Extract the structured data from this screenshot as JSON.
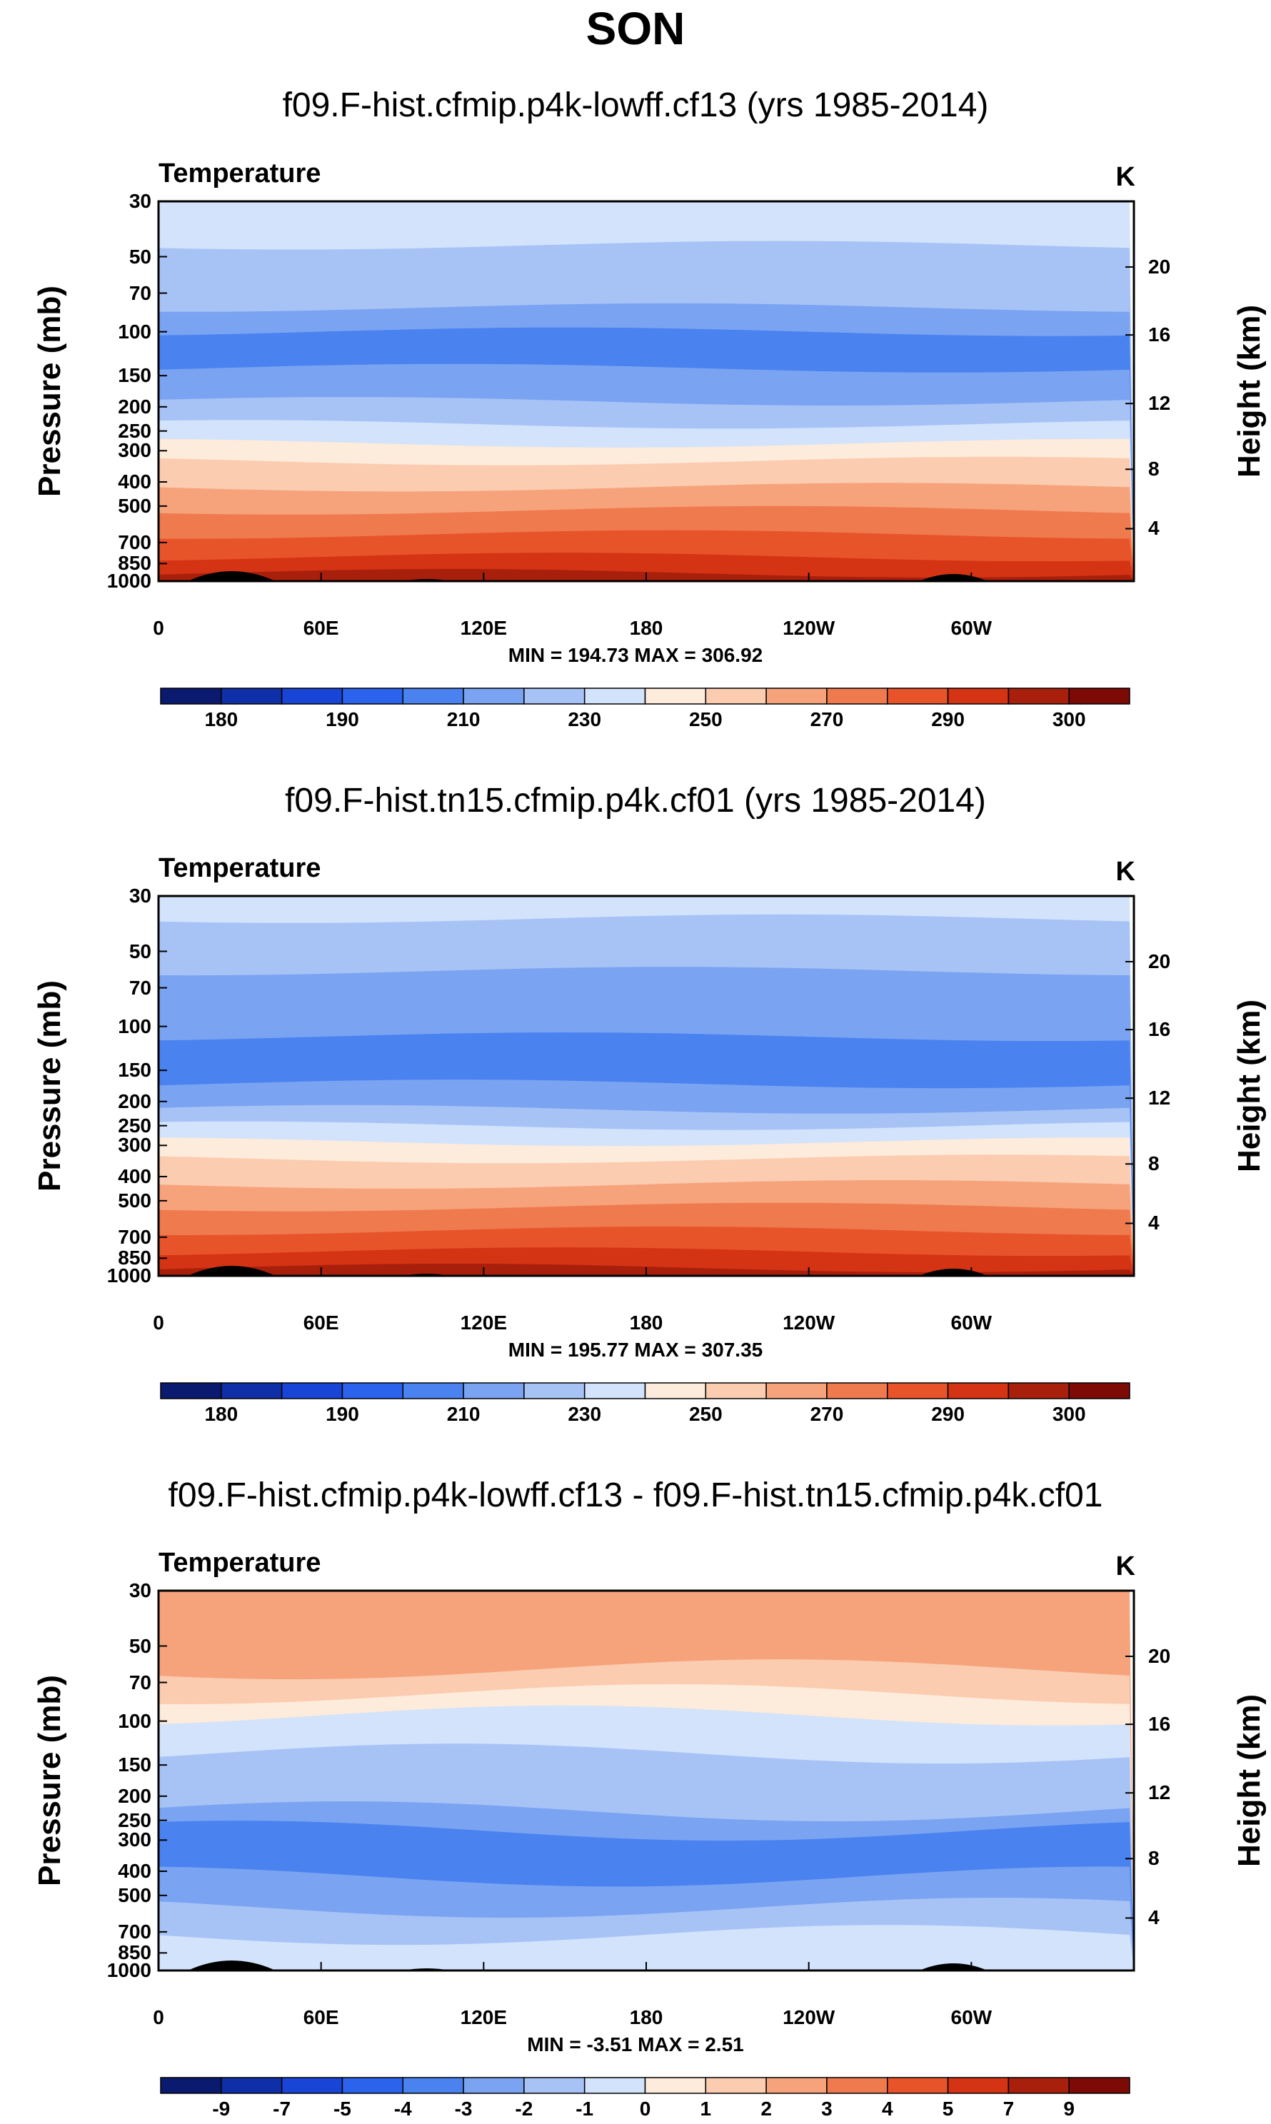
{
  "main_title": "SON",
  "colors": {
    "palette": [
      "#0a1a6e",
      "#0f2fa8",
      "#1845d6",
      "#2b63ec",
      "#4a82f0",
      "#7aa3f2",
      "#a7c3f6",
      "#d2e3fb",
      "#fdebdb",
      "#fbccb0",
      "#f6a37c",
      "#ef7a4e",
      "#e8542a",
      "#d43314",
      "#a81f0c",
      "#7d0a05"
    ],
    "topography": "#000000"
  },
  "chart_data": [
    {
      "type": "heatmap",
      "title": "f09.F-hist.cfmip.p4k-lowff.cf13 (yrs 1985-2014)",
      "variable": "Temperature",
      "units": "K",
      "ylabel": "Pressure (mb)",
      "ylabel_right": "Height (km)",
      "y_ticks": [
        "30",
        "50",
        "70",
        "100",
        "150",
        "200",
        "250",
        "300",
        "400",
        "500",
        "700",
        "850",
        "1000"
      ],
      "y_ticks_right": [
        "20",
        "16",
        "12",
        "8",
        "4"
      ],
      "x_ticks": [
        "0",
        "60E",
        "120E",
        "180",
        "120W",
        "60W"
      ],
      "min_max_text": "MIN = 194.73   MAX = 306.92",
      "colorbar_labels": [
        "180",
        "190",
        "210",
        "230",
        "250",
        "270",
        "290",
        "300"
      ],
      "levels": [
        180,
        185,
        190,
        200,
        210,
        220,
        230,
        240,
        250,
        260,
        270,
        280,
        290,
        295,
        300
      ],
      "layers": [
        {
          "color_index": 7,
          "top_mb": 30
        },
        {
          "color_index": 6,
          "top_mb": 45
        },
        {
          "color_index": 5,
          "top_mb": 80
        },
        {
          "color_index": 4,
          "top_mb": 100
        },
        {
          "color_index": 5,
          "top_mb": 140
        },
        {
          "color_index": 6,
          "top_mb": 190
        },
        {
          "color_index": 7,
          "top_mb": 235
        },
        {
          "color_index": 8,
          "top_mb": 280
        },
        {
          "color_index": 9,
          "top_mb": 330
        },
        {
          "color_index": 10,
          "top_mb": 420
        },
        {
          "color_index": 11,
          "top_mb": 520
        },
        {
          "color_index": 12,
          "top_mb": 650
        },
        {
          "color_index": 13,
          "top_mb": 800
        },
        {
          "color_index": 14,
          "top_mb": 930
        }
      ]
    },
    {
      "type": "heatmap",
      "title": "f09.F-hist.tn15.cfmip.p4k.cf01 (yrs 1985-2014)",
      "variable": "Temperature",
      "units": "K",
      "ylabel": "Pressure (mb)",
      "ylabel_right": "Height (km)",
      "y_ticks": [
        "30",
        "50",
        "70",
        "100",
        "150",
        "200",
        "250",
        "300",
        "400",
        "500",
        "700",
        "850",
        "1000"
      ],
      "y_ticks_right": [
        "20",
        "16",
        "12",
        "8",
        "4"
      ],
      "x_ticks": [
        "0",
        "60E",
        "120E",
        "180",
        "120W",
        "60W"
      ],
      "min_max_text": "MIN = 195.77   MAX = 307.35",
      "colorbar_labels": [
        "180",
        "190",
        "210",
        "230",
        "250",
        "270",
        "290",
        "300"
      ],
      "levels": [
        180,
        185,
        190,
        200,
        210,
        220,
        230,
        240,
        250,
        260,
        270,
        280,
        290,
        295,
        300
      ],
      "layers": [
        {
          "color_index": 7,
          "top_mb": 30
        },
        {
          "color_index": 6,
          "top_mb": 37
        },
        {
          "color_index": 5,
          "top_mb": 60
        },
        {
          "color_index": 4,
          "top_mb": 110
        },
        {
          "color_index": 5,
          "top_mb": 170
        },
        {
          "color_index": 6,
          "top_mb": 215
        },
        {
          "color_index": 7,
          "top_mb": 250
        },
        {
          "color_index": 8,
          "top_mb": 290
        },
        {
          "color_index": 9,
          "top_mb": 340
        },
        {
          "color_index": 10,
          "top_mb": 430
        },
        {
          "color_index": 11,
          "top_mb": 530
        },
        {
          "color_index": 12,
          "top_mb": 660
        },
        {
          "color_index": 13,
          "top_mb": 800
        },
        {
          "color_index": 14,
          "top_mb": 930
        }
      ]
    },
    {
      "type": "heatmap",
      "title": "f09.F-hist.cfmip.p4k-lowff.cf13 - f09.F-hist.tn15.cfmip.p4k.cf01",
      "variable": "Temperature",
      "units": "K",
      "ylabel": "Pressure (mb)",
      "ylabel_right": "Height (km)",
      "y_ticks": [
        "30",
        "50",
        "70",
        "100",
        "150",
        "200",
        "250",
        "300",
        "400",
        "500",
        "700",
        "850",
        "1000"
      ],
      "y_ticks_right": [
        "20",
        "16",
        "12",
        "8",
        "4"
      ],
      "x_ticks": [
        "0",
        "60E",
        "120E",
        "180",
        "120W",
        "60W"
      ],
      "min_max_text": "MIN = -3.51   MAX =  2.51",
      "colorbar_labels": [
        "-9",
        "-7",
        "-5",
        "-4",
        "-3",
        "-2",
        "-1",
        "0",
        "1",
        "2",
        "3",
        "4",
        "5",
        "7",
        "9"
      ],
      "levels": [
        -9,
        -7,
        -5,
        -4,
        -3,
        -2,
        -1,
        0,
        1,
        2,
        3,
        4,
        5,
        7,
        9
      ],
      "layers": [
        {
          "color_index": 10,
          "top_mb": 30
        },
        {
          "color_index": 9,
          "top_mb": 62
        },
        {
          "color_index": 8,
          "top_mb": 78
        },
        {
          "color_index": 7,
          "top_mb": 95
        },
        {
          "color_index": 6,
          "top_mb": 135
        },
        {
          "color_index": 5,
          "top_mb": 230
        },
        {
          "color_index": 4,
          "top_mb": 275
        },
        {
          "color_index": 5,
          "top_mb": 420
        },
        {
          "color_index": 6,
          "top_mb": 560
        },
        {
          "color_index": 7,
          "top_mb": 720
        }
      ]
    }
  ]
}
